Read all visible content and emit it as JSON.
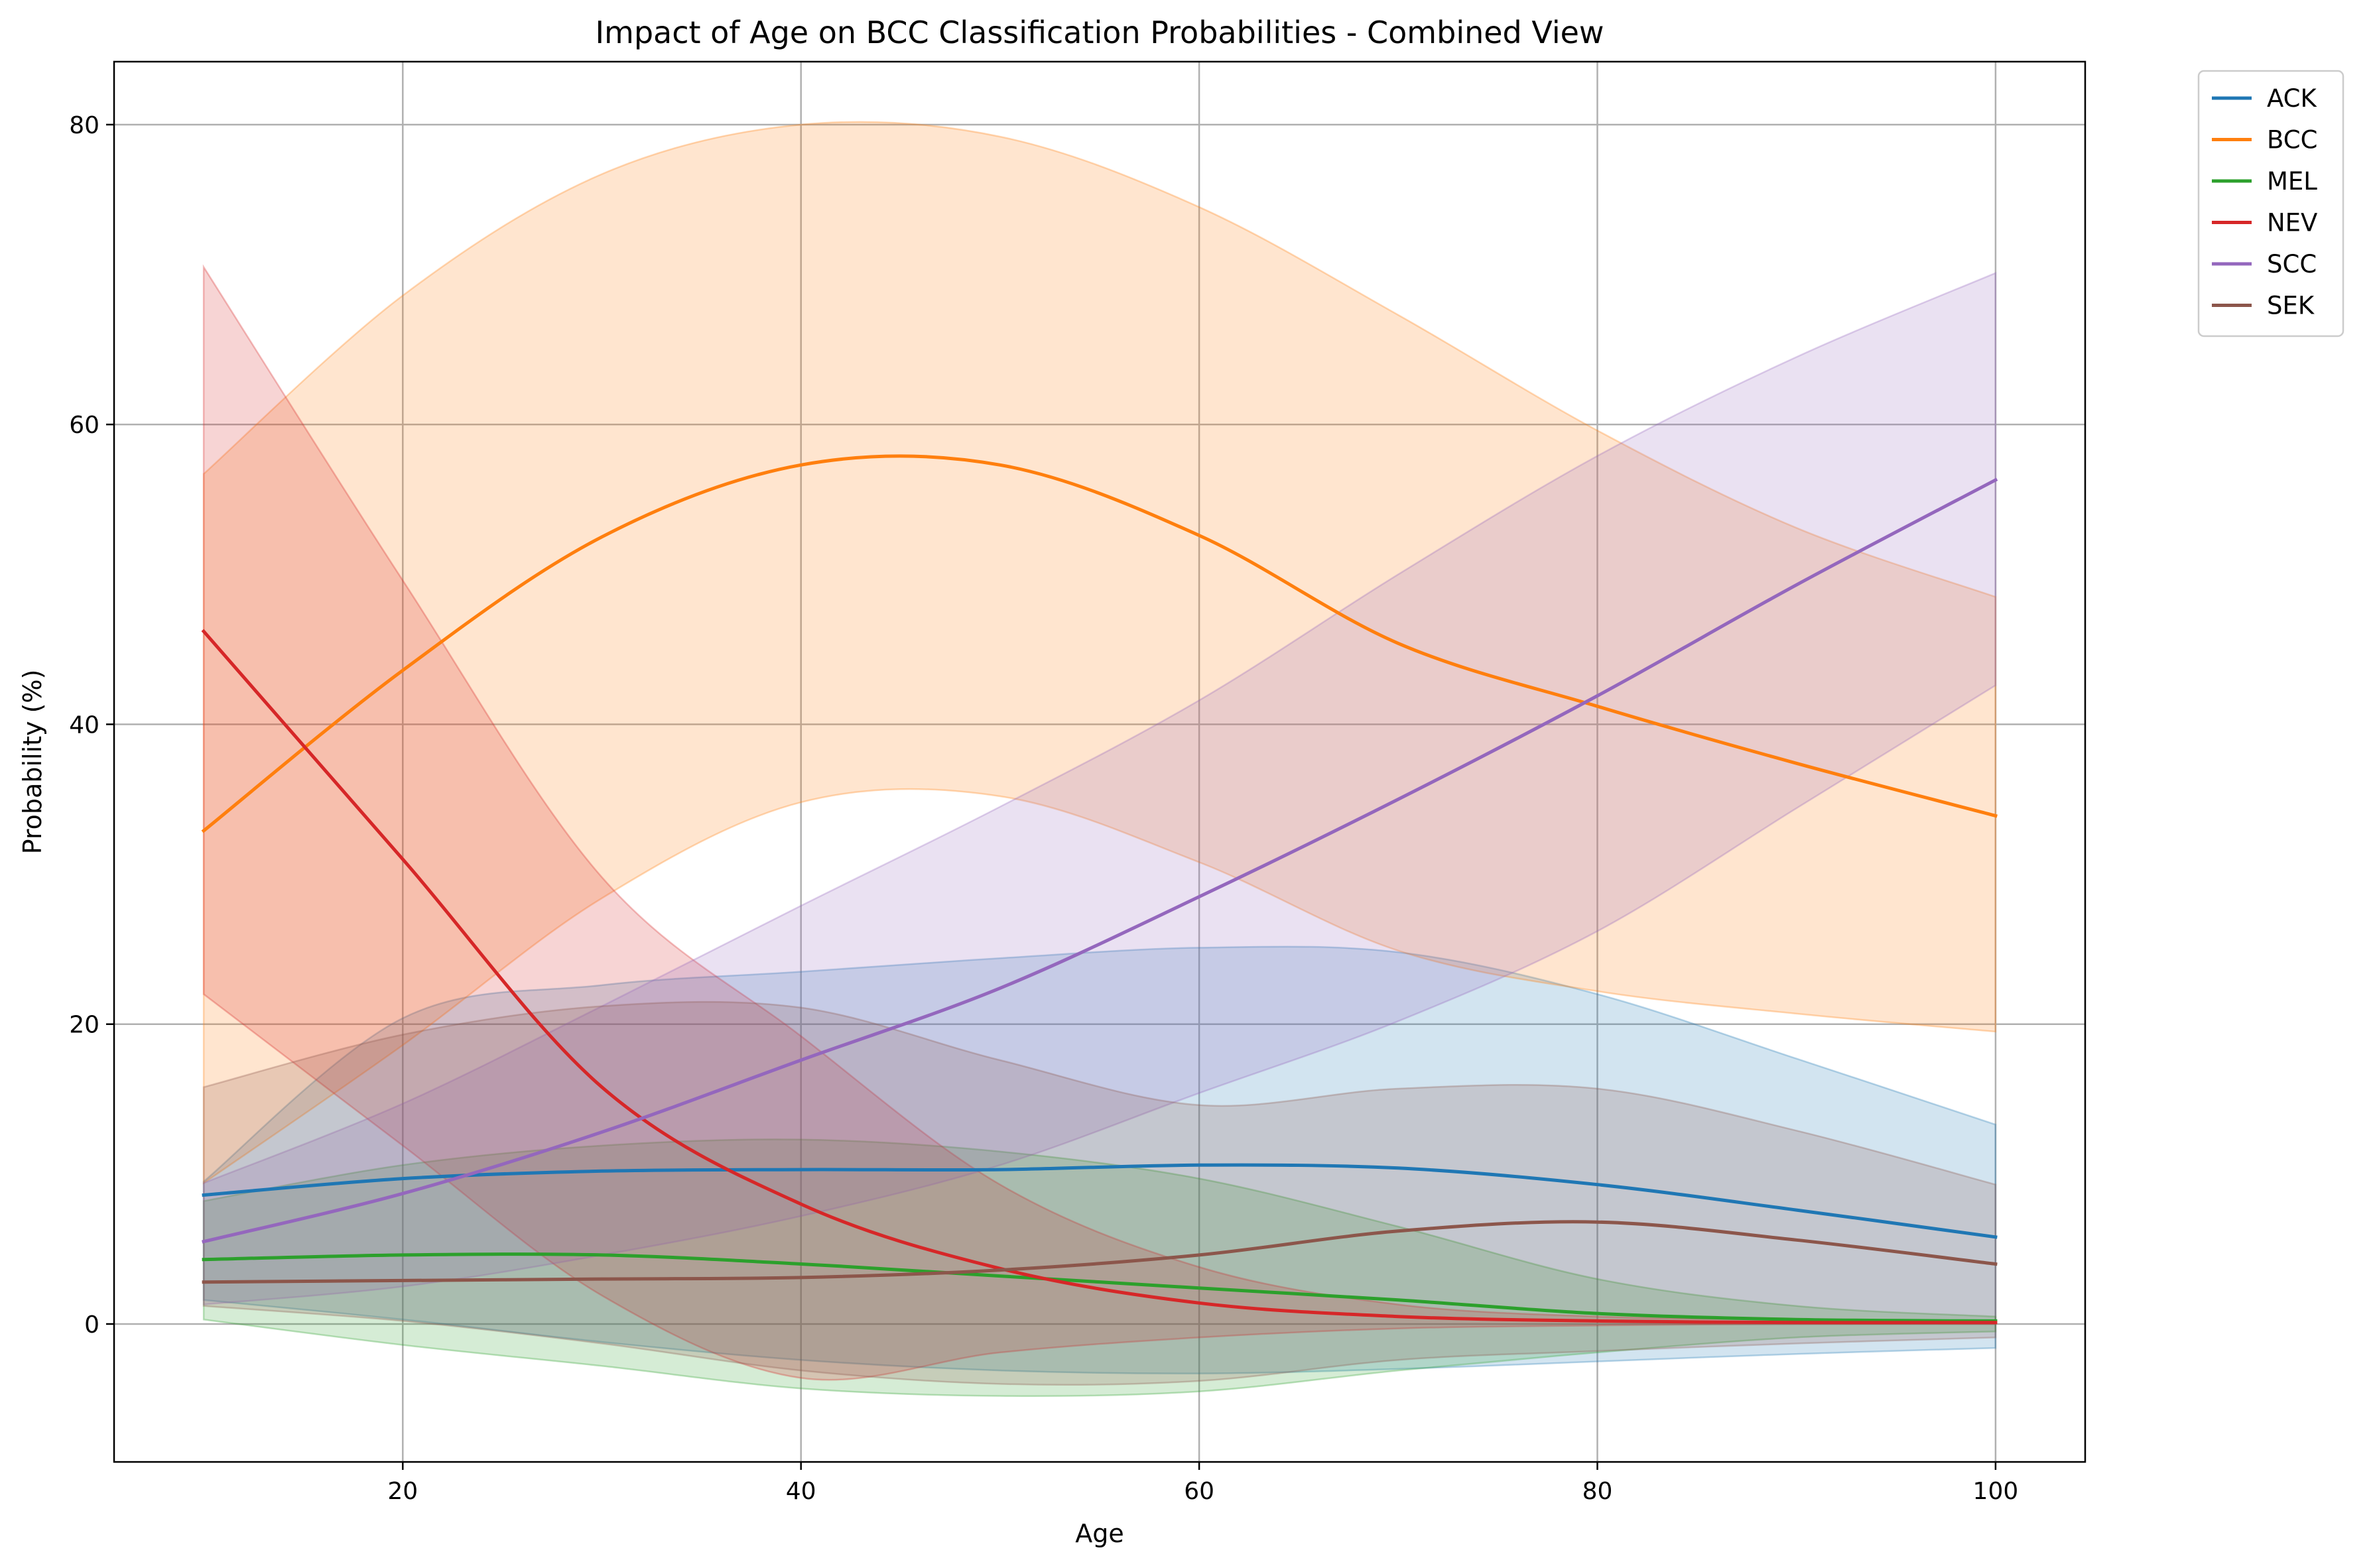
{
  "chart_data": {
    "type": "line",
    "title": "Impact of Age on BCC Classification Probabilities - Combined View",
    "xlabel": "Age",
    "ylabel": "Probability (%)",
    "xlim": [
      5.5,
      104.5
    ],
    "ylim": [
      -9.2,
      84.2
    ],
    "xticks": [
      20,
      40,
      60,
      80,
      100
    ],
    "yticks": [
      0,
      20,
      40,
      60,
      80
    ],
    "grid": true,
    "legend_position": "outside top-right",
    "x": [
      10,
      20,
      30,
      40,
      50,
      60,
      70,
      80,
      90,
      100
    ],
    "series": [
      {
        "name": "ACK",
        "color": "#1f77b4",
        "values": [
          8.6,
          9.7,
          10.2,
          10.3,
          10.3,
          10.6,
          10.4,
          9.3,
          7.6,
          5.8
        ],
        "upper": [
          9.5,
          20.4,
          22.6,
          23.5,
          24.4,
          25.1,
          24.8,
          22.0,
          17.7,
          13.3
        ],
        "lower": [
          1.6,
          0.3,
          -1.2,
          -2.4,
          -3.1,
          -3.3,
          -3.0,
          -2.5,
          -2.0,
          -1.6
        ]
      },
      {
        "name": "BCC",
        "color": "#ff7f0e",
        "values": [
          32.9,
          43.6,
          52.5,
          57.3,
          57.3,
          52.6,
          45.4,
          41.2,
          37.4,
          33.9
        ],
        "upper": [
          56.7,
          68.6,
          76.7,
          80.0,
          79.2,
          74.5,
          67.3,
          59.6,
          53.1,
          48.5
        ],
        "lower": [
          9.4,
          18.6,
          28.4,
          34.8,
          35.2,
          30.8,
          24.9,
          22.2,
          20.7,
          19.5
        ]
      },
      {
        "name": "MEL",
        "color": "#2ca02c",
        "values": [
          4.3,
          4.6,
          4.6,
          4.0,
          3.2,
          2.4,
          1.6,
          0.7,
          0.3,
          0.2
        ],
        "upper": [
          8.2,
          10.6,
          11.9,
          12.3,
          11.5,
          9.7,
          6.5,
          3.0,
          1.2,
          0.5
        ],
        "lower": [
          0.3,
          -1.4,
          -2.8,
          -4.3,
          -4.8,
          -4.5,
          -3.1,
          -1.9,
          -0.9,
          -0.5
        ]
      },
      {
        "name": "NEV",
        "color": "#d62728",
        "values": [
          46.2,
          31.0,
          15.8,
          8.0,
          3.7,
          1.4,
          0.5,
          0.2,
          0.1,
          0.1
        ],
        "upper": [
          70.5,
          49.6,
          29.8,
          19.2,
          9.3,
          3.8,
          1.3,
          0.5,
          0.3,
          0.2
        ],
        "lower": [
          22.0,
          11.9,
          1.9,
          -3.6,
          -1.9,
          -0.9,
          -0.3,
          -0.1,
          0.0,
          0.0
        ]
      },
      {
        "name": "SCC",
        "color": "#9467bd",
        "values": [
          5.5,
          8.7,
          12.8,
          17.6,
          22.4,
          28.5,
          35.0,
          41.9,
          49.3,
          56.3
        ],
        "upper": [
          9.4,
          14.7,
          21.2,
          27.9,
          34.5,
          41.6,
          50.0,
          57.9,
          64.5,
          70.1
        ],
        "lower": [
          1.3,
          2.5,
          4.6,
          7.2,
          10.6,
          15.4,
          20.2,
          26.2,
          34.4,
          42.6
        ]
      },
      {
        "name": "SEK",
        "color": "#8c564b",
        "values": [
          2.8,
          2.9,
          3.0,
          3.1,
          3.6,
          4.6,
          6.2,
          6.8,
          5.6,
          4.0
        ],
        "upper": [
          15.8,
          19.3,
          21.2,
          21.1,
          17.6,
          14.6,
          15.7,
          15.7,
          12.9,
          9.3
        ],
        "lower": [
          1.2,
          0.2,
          -1.3,
          -3.1,
          -4.0,
          -3.8,
          -2.4,
          -1.8,
          -1.3,
          -0.9
        ]
      }
    ]
  }
}
